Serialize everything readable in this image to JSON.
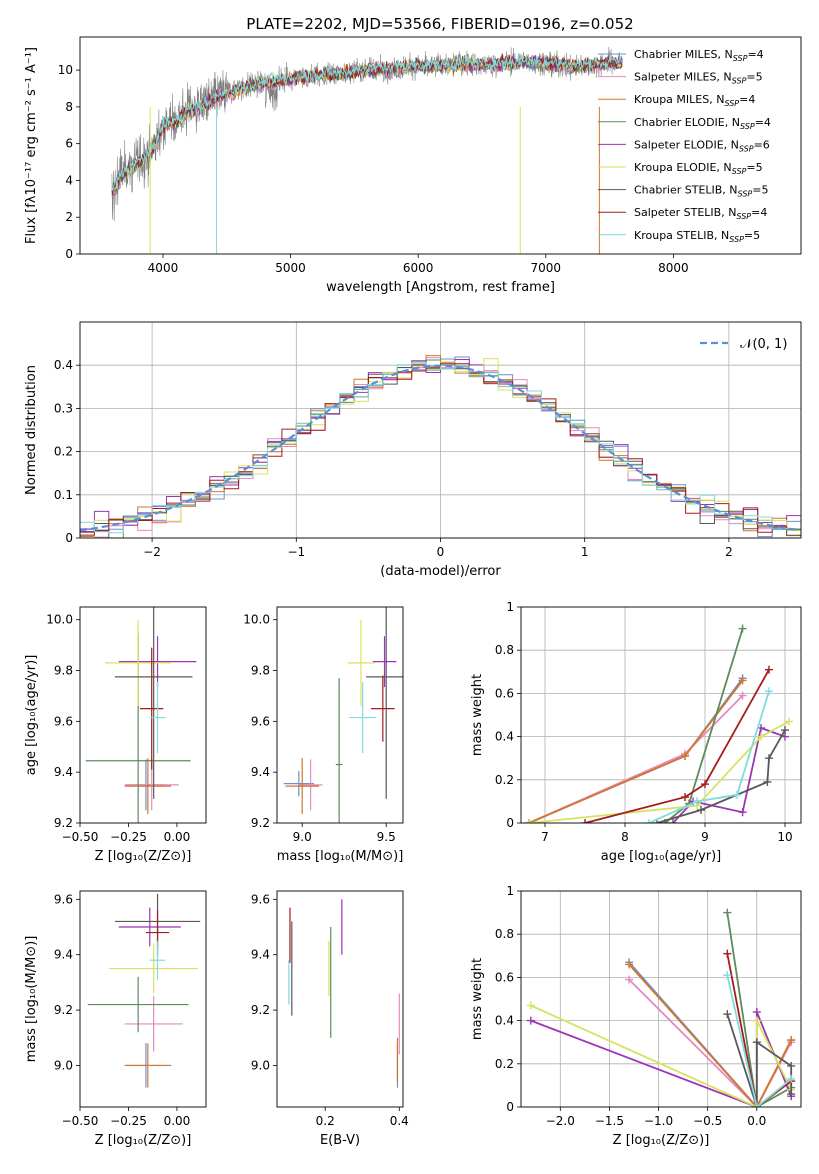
{
  "figure_title": "PLATE=2202, MJD=53566, FIBERID=0196, z=0.052",
  "colors": [
    "#6b8fd6",
    "#e589c0",
    "#d2772a",
    "#5b8c5a",
    "#9b35b8",
    "#d8e25e",
    "#595959",
    "#a51c1c",
    "#7fdcde"
  ],
  "chart_data": [
    {
      "id": "spectrum",
      "type": "line",
      "xlabel": "wavelength [Angstrom, rest frame]",
      "ylabel": "Flux [fλ10⁻¹⁷ erg cm⁻² s⁻¹ A⁻¹]",
      "xlim": [
        3350,
        9000
      ],
      "ylim": [
        0,
        11.8
      ],
      "xticks": [
        4000,
        5000,
        6000,
        7000,
        8000
      ],
      "yticks": [
        0,
        2,
        4,
        6,
        8,
        10
      ],
      "observed": {
        "color": "#7f7f7f",
        "x": [
          3600,
          3650,
          3700,
          3800,
          3900,
          4000,
          4100,
          4200,
          4300,
          4400,
          4500,
          4600,
          4800,
          5000,
          5200,
          5400,
          5600,
          5800,
          6000,
          6200,
          6400,
          6600,
          6800,
          7000,
          7200,
          7400,
          7600
        ],
        "y": [
          3.5,
          4.2,
          4.5,
          5.0,
          5.5,
          7.0,
          7.3,
          7.9,
          8.1,
          8.5,
          8.8,
          9.0,
          9.3,
          9.6,
          9.7,
          9.9,
          10.0,
          10.1,
          10.2,
          10.3,
          10.4,
          10.3,
          10.5,
          10.4,
          10.2,
          10.3,
          10.5
        ]
      },
      "series": [
        {
          "name": "Chabrier MILES, N",
          "sub": "SSP",
          "suffix": "=4"
        },
        {
          "name": "Salpeter MILES, N",
          "sub": "SSP",
          "suffix": "=5"
        },
        {
          "name": "Kroupa MILES, N",
          "sub": "SSP",
          "suffix": "=4"
        },
        {
          "name": "Chabrier ELODIE, N",
          "sub": "SSP",
          "suffix": "=4"
        },
        {
          "name": "Salpeter ELODIE, N",
          "sub": "SSP",
          "suffix": "=6"
        },
        {
          "name": "Kroupa ELODIE, N",
          "sub": "SSP",
          "suffix": "=5"
        },
        {
          "name": "Chabrier STELIB, N",
          "sub": "SSP",
          "suffix": "=5"
        },
        {
          "name": "Salpeter STELIB, N",
          "sub": "SSP",
          "suffix": "=4"
        },
        {
          "name": "Kroupa STELIB, N",
          "sub": "SSP",
          "suffix": "=5"
        }
      ],
      "model_x": [
        3600,
        3650,
        3700,
        3800,
        3900,
        4000,
        4100,
        4200,
        4300,
        4400,
        4500,
        4600,
        4800,
        5000,
        5200,
        5400,
        5600,
        5800,
        6000,
        6200,
        6400,
        6600,
        6800,
        7000,
        7200,
        7400,
        7600
      ],
      "model_y": [
        3.4,
        4.0,
        4.4,
        4.9,
        5.4,
        6.9,
        7.2,
        7.8,
        8.0,
        8.4,
        8.7,
        9.0,
        9.3,
        9.5,
        9.7,
        9.8,
        10.0,
        10.1,
        10.2,
        10.2,
        10.3,
        10.3,
        10.4,
        10.4,
        10.2,
        10.3,
        10.4
      ]
    },
    {
      "id": "residuals",
      "type": "histogram",
      "xlabel": "(data-model)/error",
      "ylabel": "Normed distribution",
      "xlim": [
        -2.5,
        2.5
      ],
      "ylim": [
        0,
        0.5
      ],
      "xticks": [
        -2,
        -1,
        0,
        1,
        2
      ],
      "yticks": [
        0.0,
        0.1,
        0.2,
        0.3,
        0.4
      ],
      "legend": "𝒩(0, 1)",
      "legend_position": "top-right",
      "grid": true
    },
    {
      "id": "age-vs-Z",
      "type": "errorbar",
      "xlabel": "Z [log₁₀(Z/Z⊙)]",
      "ylabel": "age  [log₁₀(age/yr)]",
      "xlim": [
        -0.5,
        0.15
      ],
      "ylim": [
        9.2,
        10.05
      ],
      "xticks": [
        -0.5,
        -0.25,
        0.0
      ],
      "xticklabels": [
        "−0.50",
        "−0.25",
        "0.00"
      ],
      "yticks": [
        9.2,
        9.4,
        9.6,
        9.8,
        10.0
      ],
      "yticklabels": [
        "9.2",
        "9.4",
        "9.6",
        "9.8",
        "10.0"
      ],
      "points": [
        {
          "x": -0.16,
          "y": 9.35,
          "xerr": 0.1,
          "yerr": 0.1
        },
        {
          "x": -0.13,
          "y": 9.35,
          "xerr": 0.14,
          "yerr": 0.1
        },
        {
          "x": -0.15,
          "y": 9.345,
          "xerr": 0.12,
          "yerr": 0.11
        },
        {
          "x": -0.2,
          "y": 9.445,
          "xerr": 0.27,
          "yerr": 0.5
        },
        {
          "x": -0.1,
          "y": 9.835,
          "xerr": 0.2,
          "yerr": 0.1
        },
        {
          "x": -0.2,
          "y": 9.83,
          "xerr": 0.17,
          "yerr": 0.17
        },
        {
          "x": -0.12,
          "y": 9.775,
          "xerr": 0.2,
          "yerr": 0.48
        },
        {
          "x": -0.13,
          "y": 9.65,
          "xerr": 0.06,
          "yerr": 0.24
        },
        {
          "x": -0.1,
          "y": 9.615,
          "xerr": 0.04,
          "yerr": 0.14
        }
      ]
    },
    {
      "id": "age-vs-mass",
      "type": "errorbar",
      "xlabel": "mass [log₁₀(M/M⊙)]",
      "ylabel": "",
      "xlim": [
        8.85,
        9.6
      ],
      "ylim": [
        9.2,
        10.05
      ],
      "xticks": [
        9.0,
        9.5
      ],
      "xticklabels": [
        "9.0",
        "9.5"
      ],
      "yticks": [
        9.2,
        9.4,
        9.6,
        9.8,
        10.0
      ],
      "yticklabels": [
        "9.2",
        "9.4",
        "9.6",
        "9.8",
        "10.0"
      ],
      "points": [
        {
          "x": 8.98,
          "y": 9.355,
          "xerr": 0.09,
          "yerr": 0.05
        },
        {
          "x": 9.05,
          "y": 9.35,
          "xerr": 0.07,
          "yerr": 0.1
        },
        {
          "x": 9.0,
          "y": 9.345,
          "xerr": 0.1,
          "yerr": 0.11
        },
        {
          "x": 9.22,
          "y": 9.43,
          "xerr": 0.02,
          "yerr": 0.34
        },
        {
          "x": 9.49,
          "y": 9.835,
          "xerr": 0.07,
          "yerr": 0.1
        },
        {
          "x": 9.35,
          "y": 9.83,
          "xerr": 0.08,
          "yerr": 0.17
        },
        {
          "x": 9.5,
          "y": 9.775,
          "xerr": 0.12,
          "yerr": 0.48
        },
        {
          "x": 9.48,
          "y": 9.65,
          "xerr": 0.07,
          "yerr": 0.13
        },
        {
          "x": 9.36,
          "y": 9.615,
          "xerr": 0.08,
          "yerr": 0.14
        }
      ]
    },
    {
      "id": "weight-vs-age",
      "type": "line",
      "xlabel": "age  [log₁₀(age/yr)]",
      "ylabel": "mass weight",
      "xlim": [
        6.7,
        10.2
      ],
      "ylim": [
        0,
        1.0
      ],
      "xticks": [
        7,
        8,
        9,
        10
      ],
      "yticks": [
        0.0,
        0.2,
        0.4,
        0.6,
        0.8,
        1.0
      ],
      "grid": true,
      "series_points": [
        {
          "x": [
            6.8,
            8.75,
            9.47
          ],
          "y": [
            0.0,
            0.31,
            0.67
          ]
        },
        {
          "x": [
            6.8,
            8.75,
            9.47
          ],
          "y": [
            0.0,
            0.32,
            0.59
          ]
        },
        {
          "x": [
            6.8,
            8.75,
            9.47
          ],
          "y": [
            0.0,
            0.31,
            0.66
          ]
        },
        {
          "x": [
            8.5,
            8.8,
            9.47
          ],
          "y": [
            0.0,
            0.09,
            0.9
          ]
        },
        {
          "x": [
            8.6,
            8.85,
            9.47,
            9.7,
            10.0
          ],
          "y": [
            0.0,
            0.1,
            0.05,
            0.44,
            0.4
          ]
        },
        {
          "x": [
            6.8,
            8.9,
            9.7,
            10.05
          ],
          "y": [
            0.0,
            0.08,
            0.4,
            0.47
          ]
        },
        {
          "x": [
            8.4,
            8.95,
            9.78,
            9.8,
            10.0
          ],
          "y": [
            0.0,
            0.06,
            0.19,
            0.3,
            0.43
          ]
        },
        {
          "x": [
            7.5,
            8.75,
            9.0,
            9.8
          ],
          "y": [
            0.0,
            0.12,
            0.18,
            0.71
          ]
        },
        {
          "x": [
            8.3,
            8.9,
            9.4,
            9.8
          ],
          "y": [
            0.0,
            0.1,
            0.13,
            0.61
          ]
        }
      ]
    },
    {
      "id": "mass-vs-Z",
      "type": "errorbar",
      "xlabel": "Z [log₁₀(Z/Z⊙)]",
      "ylabel": "mass [log₁₀(M/M⊙)]",
      "xlim": [
        -0.5,
        0.15
      ],
      "ylim": [
        8.85,
        9.63
      ],
      "xticks": [
        -0.5,
        -0.25,
        0.0
      ],
      "xticklabels": [
        "−0.50",
        "−0.25",
        "0.00"
      ],
      "yticks": [
        9.0,
        9.2,
        9.4,
        9.6
      ],
      "yticklabels": [
        "9.0",
        "9.2",
        "9.4",
        "9.6"
      ],
      "points": [
        {
          "x": -0.16,
          "y": 9.0,
          "xerr": 0.1,
          "yerr": 0.08
        },
        {
          "x": -0.12,
          "y": 9.15,
          "xerr": 0.15,
          "yerr": 0.1
        },
        {
          "x": -0.15,
          "y": 9.0,
          "xerr": 0.12,
          "yerr": 0.08
        },
        {
          "x": -0.2,
          "y": 9.22,
          "xerr": 0.26,
          "yerr": 0.1
        },
        {
          "x": -0.14,
          "y": 9.5,
          "xerr": 0.16,
          "yerr": 0.07
        },
        {
          "x": -0.12,
          "y": 9.35,
          "xerr": 0.23,
          "yerr": 0.09
        },
        {
          "x": -0.1,
          "y": 9.52,
          "xerr": 0.22,
          "yerr": 0.1
        },
        {
          "x": -0.1,
          "y": 9.48,
          "xerr": 0.06,
          "yerr": 0.08
        },
        {
          "x": -0.1,
          "y": 9.38,
          "xerr": 0.04,
          "yerr": 0.07
        }
      ]
    },
    {
      "id": "mass-vs-EBV",
      "type": "errorbar",
      "xlabel": "E(B-V)",
      "ylabel": "",
      "xlim": [
        0.07,
        0.41
      ],
      "ylim": [
        8.85,
        9.63
      ],
      "xticks": [
        0.2,
        0.4
      ],
      "xticklabels": [
        "0.2",
        "0.4"
      ],
      "yticks": [
        9.0,
        9.2,
        9.4,
        9.6
      ],
      "yticklabels": [
        "9.0",
        "9.2",
        "9.4",
        "9.6"
      ],
      "points": [
        {
          "x": 0.395,
          "y": 9.0,
          "xerr": 0,
          "yerr": 0.08
        },
        {
          "x": 0.4,
          "y": 9.15,
          "xerr": 0,
          "yerr": 0.11
        },
        {
          "x": 0.395,
          "y": 9.02,
          "xerr": 0,
          "yerr": 0.08
        },
        {
          "x": 0.215,
          "y": 9.3,
          "xerr": 0,
          "yerr": 0.2
        },
        {
          "x": 0.245,
          "y": 9.5,
          "xerr": 0,
          "yerr": 0.1
        },
        {
          "x": 0.21,
          "y": 9.35,
          "xerr": 0,
          "yerr": 0.1
        },
        {
          "x": 0.11,
          "y": 9.35,
          "xerr": 0,
          "yerr": 0.17
        },
        {
          "x": 0.105,
          "y": 9.47,
          "xerr": 0,
          "yerr": 0.1
        },
        {
          "x": 0.102,
          "y": 9.3,
          "xerr": 0,
          "yerr": 0.08
        }
      ]
    },
    {
      "id": "weight-vs-Z",
      "type": "line",
      "xlabel": "Z [log₁₀(Z/Z⊙)]",
      "ylabel": "mass weight",
      "xlim": [
        -2.4,
        0.45
      ],
      "ylim": [
        0,
        1.0
      ],
      "xticks": [
        -2.0,
        -1.5,
        -1.0,
        -0.5,
        0.0
      ],
      "xticklabels": [
        "−2.0",
        "−1.5",
        "−1.0",
        "−0.5",
        "0.0"
      ],
      "yticks": [
        0.0,
        0.2,
        0.4,
        0.6,
        0.8,
        1.0
      ],
      "grid": true,
      "series_points": [
        {
          "x": [
            -1.3,
            0.0,
            0.35
          ],
          "y": [
            0.67,
            0.0,
            0.31
          ]
        },
        {
          "x": [
            -1.3,
            0.0,
            0.35
          ],
          "y": [
            0.59,
            0.0,
            0.3
          ]
        },
        {
          "x": [
            -1.3,
            0.0,
            0.35
          ],
          "y": [
            0.66,
            0.0,
            0.31
          ]
        },
        {
          "x": [
            -0.3,
            0.0,
            0.35
          ],
          "y": [
            0.9,
            0.0,
            0.09
          ]
        },
        {
          "x": [
            -2.3,
            0.0,
            0.0,
            0.35
          ],
          "y": [
            0.4,
            0.0,
            0.44,
            0.05
          ]
        },
        {
          "x": [
            -2.3,
            0.0,
            0.0,
            0.35
          ],
          "y": [
            0.47,
            0.0,
            0.4,
            0.08
          ]
        },
        {
          "x": [
            -0.3,
            0.0,
            0.0,
            0.35,
            0.35
          ],
          "y": [
            0.43,
            0.0,
            0.3,
            0.19,
            0.06
          ]
        },
        {
          "x": [
            -0.3,
            0.0,
            0.35
          ],
          "y": [
            0.71,
            0.0,
            0.12
          ]
        },
        {
          "x": [
            -0.3,
            0.0,
            0.35
          ],
          "y": [
            0.61,
            0.0,
            0.13
          ]
        }
      ]
    }
  ]
}
